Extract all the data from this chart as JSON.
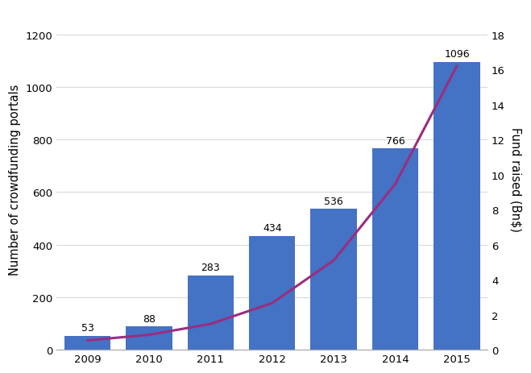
{
  "years": [
    2009,
    2010,
    2011,
    2012,
    2013,
    2014,
    2015
  ],
  "portals": [
    53,
    88,
    283,
    434,
    536,
    766,
    1096
  ],
  "funds_bn": [
    0.53,
    0.85,
    1.47,
    2.66,
    5.1,
    9.46,
    16.2
  ],
  "bar_color": "#4472C4",
  "line_color": "#9B2D7F",
  "ylabel_left": "Number of crowdfunding portals",
  "ylabel_right": "Fund raised (Bn$)",
  "ylim_left": [
    0,
    1300
  ],
  "ylim_right": [
    0,
    19.5
  ],
  "yticks_left": [
    0,
    200,
    400,
    600,
    800,
    1000,
    1200
  ],
  "yticks_right": [
    0,
    2,
    4,
    6,
    8,
    10,
    12,
    14,
    16,
    18
  ],
  "bar_width": 0.75,
  "background_color": "#ffffff",
  "grid_color": "#d9d9d9",
  "label_fontsize": 9,
  "tick_fontsize": 9.5,
  "ylabel_fontsize": 10.5
}
